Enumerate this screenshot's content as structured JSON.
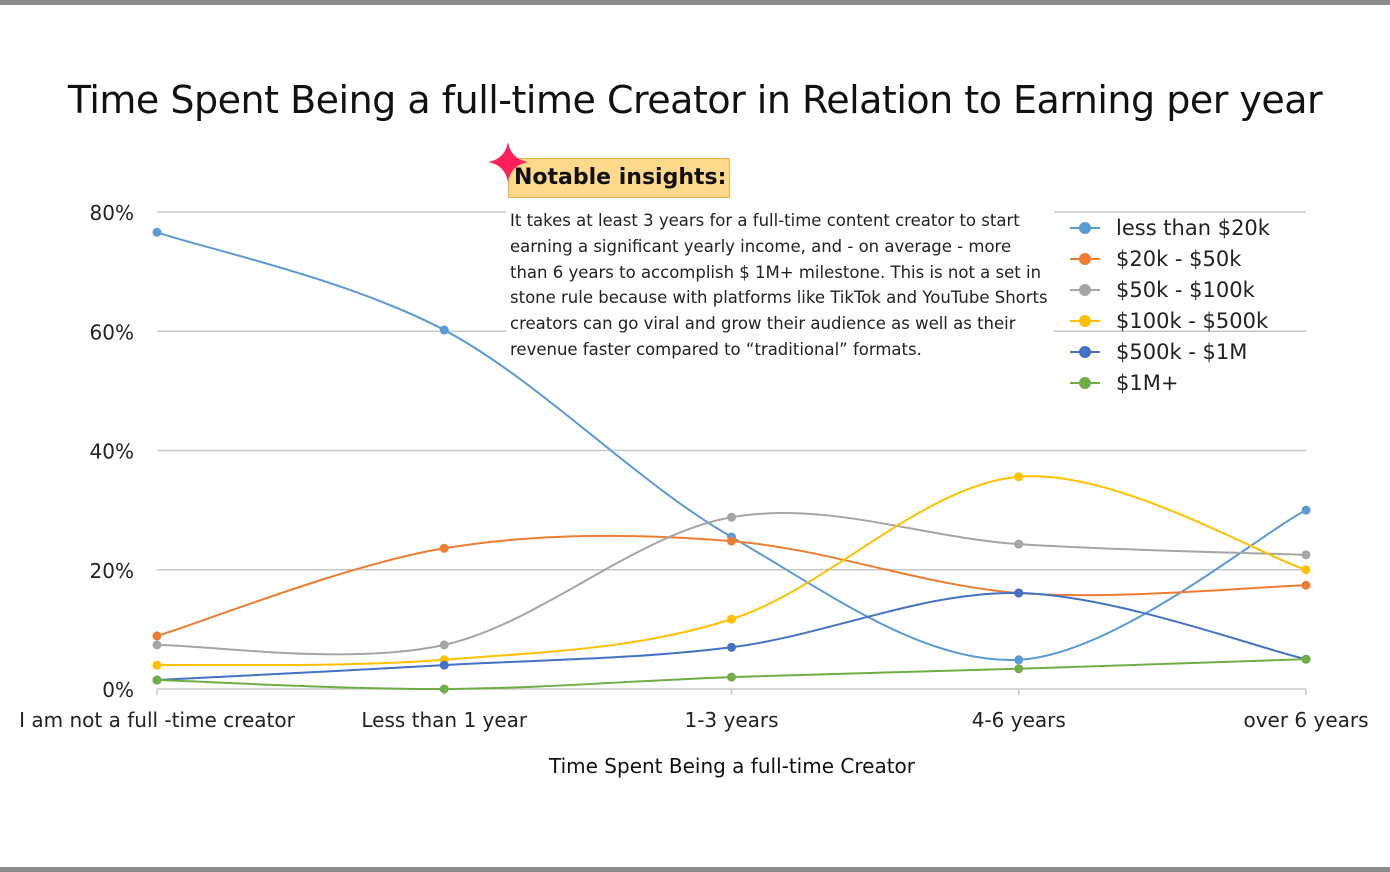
{
  "chart_data": {
    "type": "line",
    "title": "Time Spent Being a full-time Creator in Relation to Earning per year",
    "xlabel": "Time Spent Being a full-time Creator",
    "ylabel": "",
    "categories": [
      "I am not a full -time creator",
      "Less than 1 year",
      "1-3 years",
      "4-6 years",
      "over 6 years"
    ],
    "yticks": [
      "0%",
      "20%",
      "40%",
      "60%",
      "80%"
    ],
    "ylim": [
      0,
      80
    ],
    "grid": true,
    "smooth": true,
    "legend_position": "right",
    "series": [
      {
        "name": "less than $20k",
        "color": "#5b9bd5",
        "values": [
          76.6,
          60.2,
          25.5,
          4.9,
          30.0
        ]
      },
      {
        "name": "$20k - $50k",
        "color": "#ed7d31",
        "values": [
          8.9,
          23.6,
          24.8,
          16.1,
          17.4
        ]
      },
      {
        "name": "$50k - $100k",
        "color": "#a5a5a5",
        "values": [
          7.4,
          7.4,
          28.8,
          24.3,
          22.5
        ]
      },
      {
        "name": "$100k - $500k",
        "color": "#ffc000",
        "values": [
          4.0,
          4.9,
          11.7,
          35.6,
          20.0
        ]
      },
      {
        "name": "$500k - $1M",
        "color": "#4472c4",
        "values": [
          1.5,
          4.0,
          7.0,
          16.1,
          5.0
        ]
      },
      {
        "name": "$1M+",
        "color": "#70ad47",
        "values": [
          1.5,
          0.0,
          2.0,
          3.4,
          5.0
        ]
      }
    ]
  },
  "insights": {
    "heading": "Notable insights:",
    "text": "It takes at least 3 years for a full-time content creator to start earning a significant yearly income, and - on average - more than 6 years to accomplish $ 1M+ milestone. This is not a set in stone rule because with platforms like TikTok and YouTube Shorts creators can go viral and grow their audience as well as their revenue faster compared to “traditional” formats.",
    "star_color": "#ff1f5a"
  }
}
